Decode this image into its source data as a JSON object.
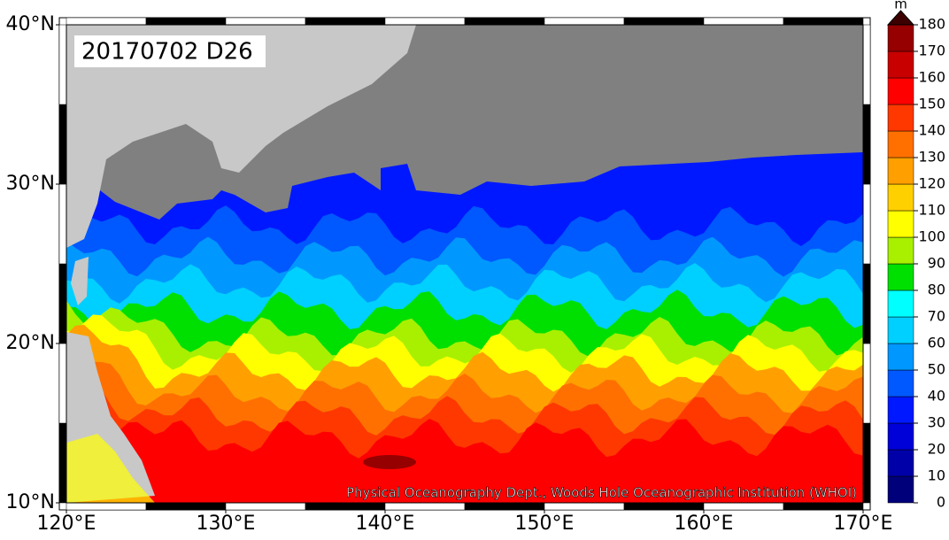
{
  "map": {
    "lon_range": [
      120,
      170
    ],
    "lat_range": [
      10,
      40
    ],
    "lon_ticks": [
      {
        "value": 120,
        "label": "120°E"
      },
      {
        "value": 130,
        "label": "130°E"
      },
      {
        "value": 140,
        "label": "140°E"
      },
      {
        "value": 150,
        "label": "150°E"
      },
      {
        "value": 160,
        "label": "160°E"
      },
      {
        "value": 170,
        "label": "170°E"
      }
    ],
    "lat_ticks": [
      {
        "value": 10,
        "label": "10°N"
      },
      {
        "value": 20,
        "label": "20°N"
      },
      {
        "value": 30,
        "label": "30°N"
      },
      {
        "value": 40,
        "label": "40°N"
      }
    ],
    "label": "20170702 D26",
    "credit": "Physical Oceanography Dept., Woods Hole Oceanographic Institution (WHOI)"
  },
  "colorbar": {
    "unit": "m",
    "ticks": [
      0,
      10,
      20,
      30,
      40,
      50,
      60,
      70,
      80,
      90,
      100,
      110,
      120,
      130,
      140,
      150,
      160,
      170,
      180
    ],
    "colors": [
      "#00007a",
      "#0000a8",
      "#0000d8",
      "#0018ff",
      "#0058ff",
      "#0098ff",
      "#00d0ff",
      "#00ffff",
      "#00e000",
      "#a8f000",
      "#ffff00",
      "#ffd000",
      "#ffa000",
      "#ff7000",
      "#ff3800",
      "#ff0000",
      "#c80000",
      "#960000"
    ],
    "over_color": "#3c0000"
  }
}
